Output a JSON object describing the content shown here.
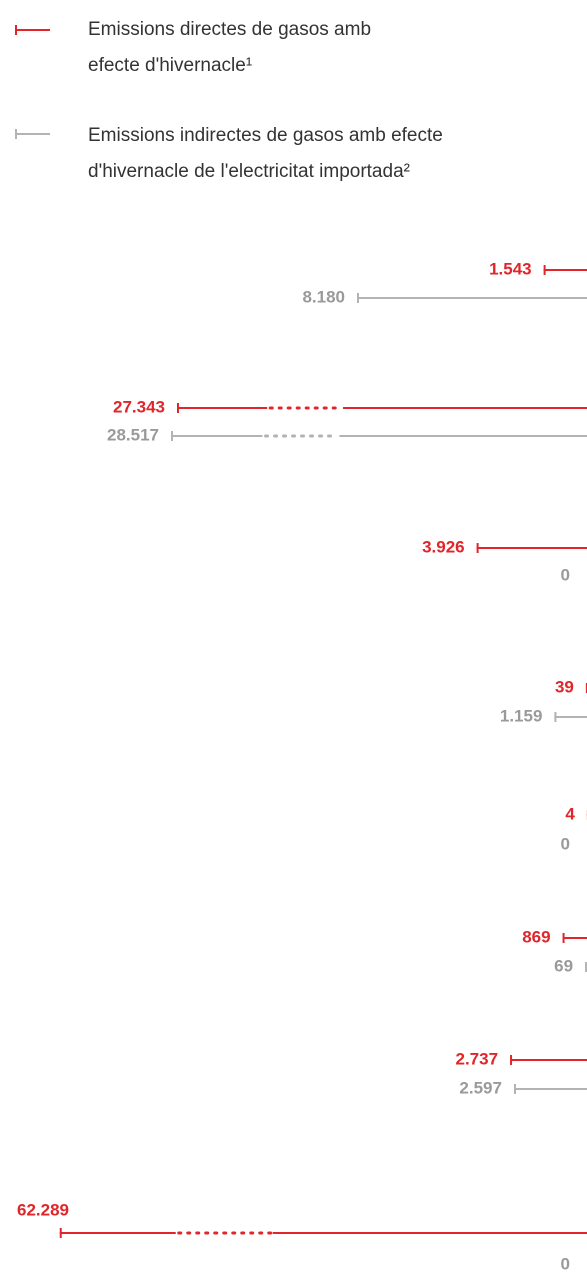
{
  "chart_data": {
    "type": "bar",
    "orientation": "horizontal",
    "series": [
      {
        "name": "Emissions directes de gasos amb efecte d'hivernacle¹",
        "color": "#e0262b",
        "values": [
          1543,
          27343,
          3926,
          39,
          4,
          869,
          2737,
          62289
        ],
        "value_labels": [
          "1.543",
          "27.343",
          "3.926",
          "39",
          "4",
          "869",
          "2.737",
          "62.289"
        ]
      },
      {
        "name": "Emissions indirectes de gasos amb efecte d'hivernacle de l'electricitat importada²",
        "color": "#b3b3b3",
        "values": [
          8180,
          28517,
          0,
          1159,
          0,
          69,
          2597,
          0
        ],
        "value_labels": [
          "8.180",
          "28.517",
          "0",
          "1.159",
          "0",
          "69",
          "2.597",
          "0"
        ]
      }
    ]
  }
}
